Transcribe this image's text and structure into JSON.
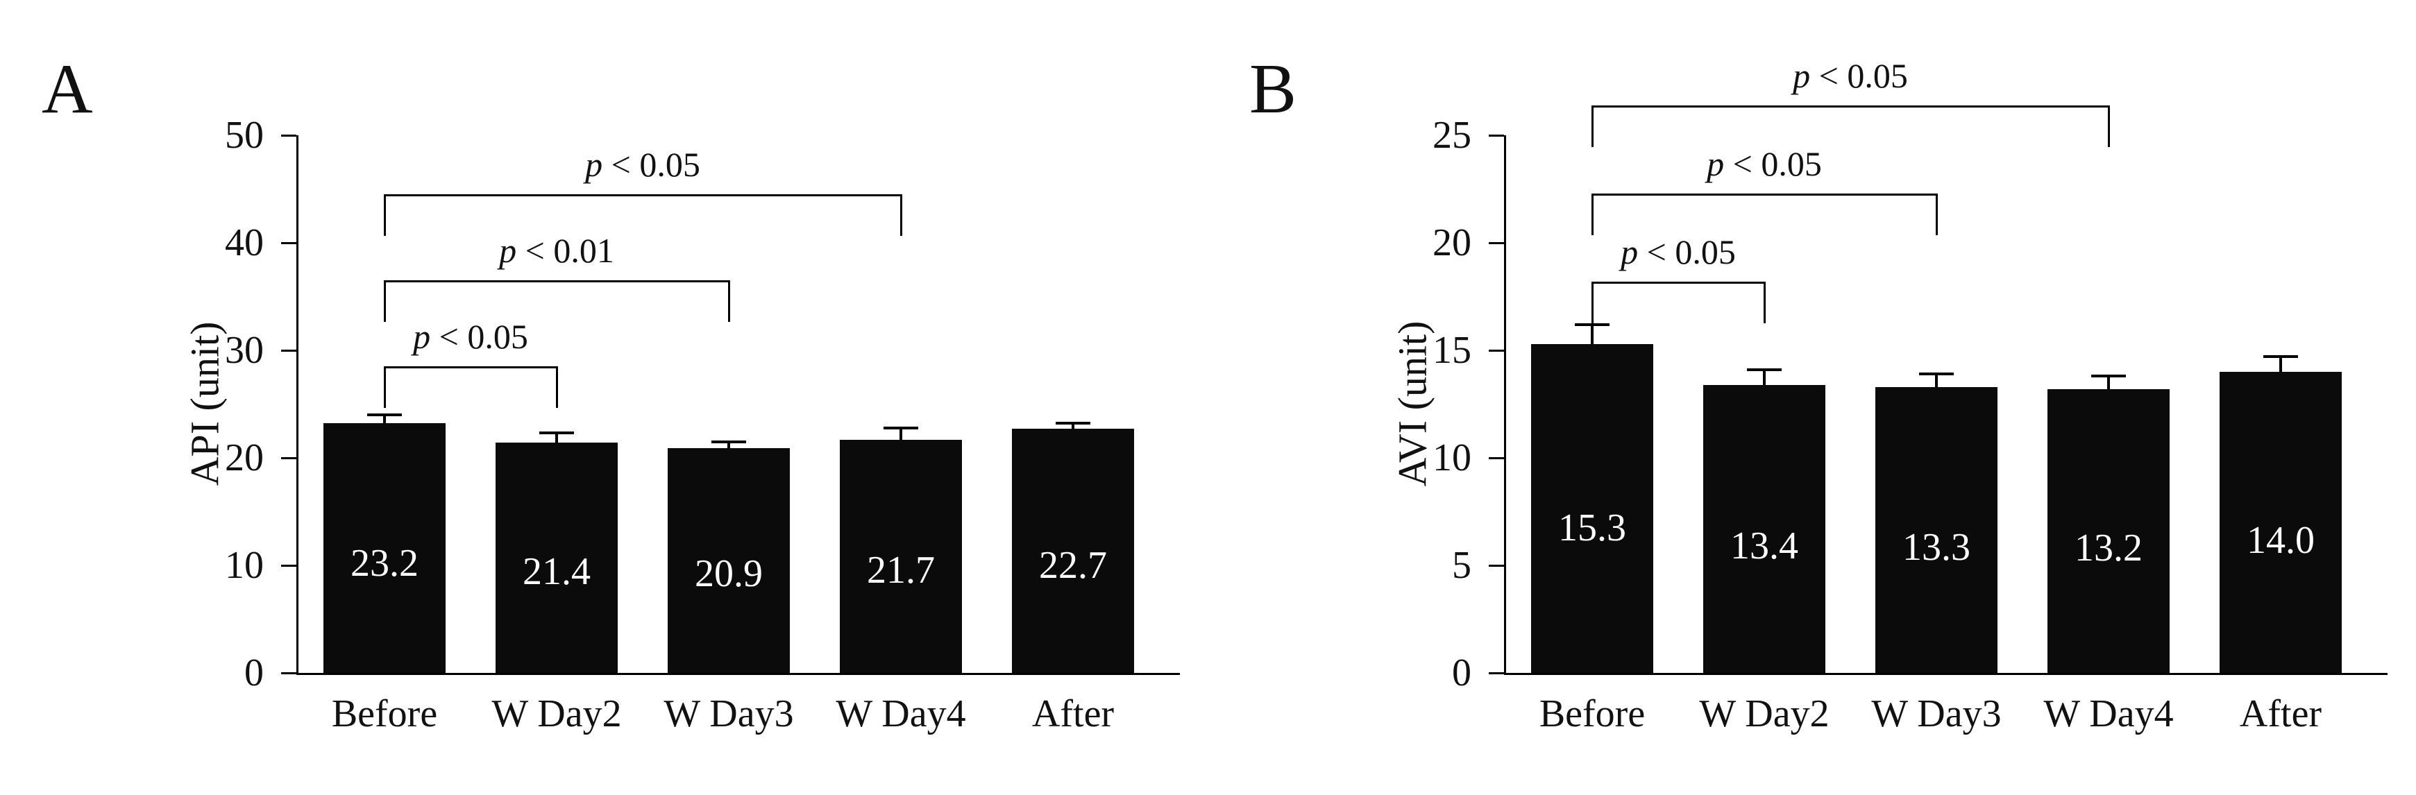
{
  "figure": {
    "background": "#ffffff",
    "bar_color": "#0b0b0b",
    "value_label_color": "#ffffff",
    "axis_color": "#000000"
  },
  "chart_data": [
    {
      "type": "bar",
      "panel_label": "A",
      "title": "",
      "xlabel": "",
      "ylabel": "API (unit)",
      "ylim": [
        0,
        50
      ],
      "yticks": [
        0,
        10,
        20,
        30,
        40,
        50
      ],
      "grid": false,
      "legend": "none",
      "categories": [
        "Before",
        "W Day2",
        "W Day3",
        "W Day4",
        "After"
      ],
      "values": [
        23.2,
        21.4,
        20.9,
        21.7,
        22.7
      ],
      "bar_value_labels": [
        "23.2",
        "21.4",
        "20.9",
        "21.7",
        "22.7"
      ],
      "errors": [
        0.8,
        0.9,
        0.6,
        1.1,
        0.5
      ],
      "brackets": [
        {
          "from": 0,
          "to": 1,
          "label": "p < 0.05",
          "height": 28.5
        },
        {
          "from": 0,
          "to": 2,
          "label": "p < 0.01",
          "height": 36.5
        },
        {
          "from": 0,
          "to": 3,
          "label": "p < 0.05",
          "height": 44.5
        }
      ]
    },
    {
      "type": "bar",
      "panel_label": "B",
      "title": "",
      "xlabel": "",
      "ylabel": "AVI (unit)",
      "ylim": [
        0,
        25
      ],
      "yticks": [
        0,
        5,
        10,
        15,
        20,
        25
      ],
      "grid": false,
      "legend": "none",
      "categories": [
        "Before",
        "W Day2",
        "W Day3",
        "W Day4",
        "After"
      ],
      "values": [
        15.3,
        13.4,
        13.3,
        13.2,
        14.0
      ],
      "bar_value_labels": [
        "15.3",
        "13.4",
        "13.3",
        "13.2",
        "14.0"
      ],
      "errors": [
        0.9,
        0.7,
        0.6,
        0.6,
        0.7
      ],
      "brackets": [
        {
          "from": 0,
          "to": 1,
          "label": "p < 0.05",
          "height": 18.2
        },
        {
          "from": 0,
          "to": 2,
          "label": "p < 0.05",
          "height": 22.3
        },
        {
          "from": 0,
          "to": 3,
          "label": "p < 0.05",
          "height": 26.4
        }
      ]
    }
  ]
}
